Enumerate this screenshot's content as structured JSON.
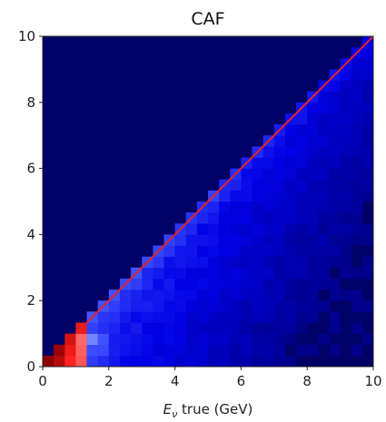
{
  "chart_data": {
    "type": "heatmap",
    "title": "CAF",
    "xlabel_symbol": "E",
    "xlabel_subscript": "ν",
    "xlabel_rest": " true (GeV)",
    "ylabel": "",
    "xlim": [
      0,
      10
    ],
    "ylim": [
      0,
      10
    ],
    "x_ticks": [
      "0",
      "2",
      "4",
      "6",
      "8",
      "10"
    ],
    "y_ticks": [
      "0",
      "2",
      "4",
      "6",
      "8",
      "10"
    ],
    "bins": 30,
    "background_color": "#000066",
    "diagonal_color": "#e8202a",
    "diagonal_line": {
      "from": [
        1,
        1
      ],
      "to": [
        10,
        10
      ]
    },
    "colormap": "seismic",
    "description_of_density": "counts concentrated just below the y = x diagonal, highest at low energy (0-1 GeV, red), fading to light and dark blue at higher energy"
  }
}
